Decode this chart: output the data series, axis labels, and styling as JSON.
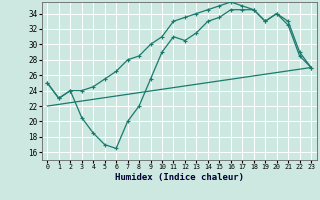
{
  "xlabel": "Humidex (Indice chaleur)",
  "bg_color": "#cce8e0",
  "grid_color": "#ffffff",
  "line_color": "#1a7a6e",
  "xlim": [
    -0.5,
    23.5
  ],
  "ylim": [
    15,
    35.5
  ],
  "xticks": [
    0,
    1,
    2,
    3,
    4,
    5,
    6,
    7,
    8,
    9,
    10,
    11,
    12,
    13,
    14,
    15,
    16,
    17,
    18,
    19,
    20,
    21,
    22,
    23
  ],
  "yticks": [
    16,
    18,
    20,
    22,
    24,
    26,
    28,
    30,
    32,
    34
  ],
  "line1_x": [
    0,
    1,
    2,
    3,
    4,
    5,
    6,
    7,
    8,
    9,
    10,
    11,
    12,
    13,
    14,
    15,
    16,
    17,
    18,
    19,
    20,
    21,
    22,
    23
  ],
  "line1_y": [
    25.0,
    23.0,
    24.0,
    24.0,
    24.5,
    25.5,
    26.5,
    28.0,
    28.5,
    30.0,
    31.0,
    33.0,
    33.5,
    34.0,
    34.5,
    35.0,
    35.5,
    35.0,
    34.5,
    33.0,
    34.0,
    33.0,
    29.0,
    27.0
  ],
  "line2_x": [
    0,
    1,
    2,
    3,
    4,
    5,
    6,
    7,
    8,
    9,
    10,
    11,
    12,
    13,
    14,
    15,
    16,
    17,
    18,
    19,
    20,
    21,
    22,
    23
  ],
  "line2_y": [
    25.0,
    23.0,
    24.0,
    20.5,
    18.5,
    17.0,
    16.5,
    20.0,
    22.0,
    25.5,
    29.0,
    31.0,
    30.5,
    31.5,
    33.0,
    33.5,
    34.5,
    34.5,
    34.5,
    33.0,
    34.0,
    32.5,
    28.5,
    27.0
  ],
  "line3_x": [
    0,
    23
  ],
  "line3_y": [
    22.0,
    27.0
  ]
}
